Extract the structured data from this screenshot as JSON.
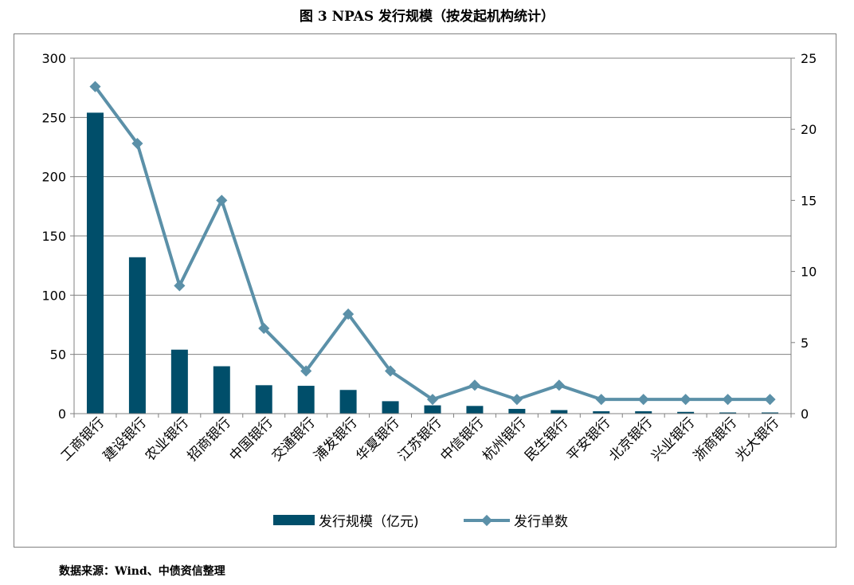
{
  "title": "图 3 NPAS 发行规模（按发起机构统计）",
  "source": "数据来源：Wind、中债资信整理",
  "colors": {
    "bar": "#004E6A",
    "line": "#5B90A8",
    "grid": "#808080",
    "axis": "#808080"
  },
  "chart_data": {
    "type": "bar+line",
    "categories": [
      "工商银行",
      "建设银行",
      "农业银行",
      "招商银行",
      "中国银行",
      "交通银行",
      "浦发银行",
      "华夏银行",
      "江苏银行",
      "中信银行",
      "杭州银行",
      "民生银行",
      "平安银行",
      "北京银行",
      "兴业银行",
      "浙商银行",
      "光大银行"
    ],
    "series": [
      {
        "name": "发行规模（亿元)",
        "type": "bar",
        "axis": "left",
        "values": [
          254,
          132,
          54,
          40,
          24,
          23.5,
          20,
          10.5,
          7,
          6.5,
          4,
          3,
          2,
          2,
          1.5,
          1,
          1
        ]
      },
      {
        "name": "发行单数",
        "type": "line",
        "axis": "right",
        "marker": "diamond",
        "values": [
          23,
          19,
          9,
          15,
          6,
          3,
          7,
          3,
          1,
          2,
          1,
          2,
          1,
          1,
          1,
          1,
          1
        ]
      }
    ],
    "y_left": {
      "min": 0,
      "max": 300,
      "ticks": [
        "0",
        "50",
        "100",
        "150",
        "200",
        "250",
        "300"
      ]
    },
    "y_right": {
      "min": 0,
      "max": 25,
      "ticks": [
        "0",
        "5",
        "10",
        "15",
        "20",
        "25"
      ]
    },
    "grid": true,
    "legend": "bottom"
  }
}
